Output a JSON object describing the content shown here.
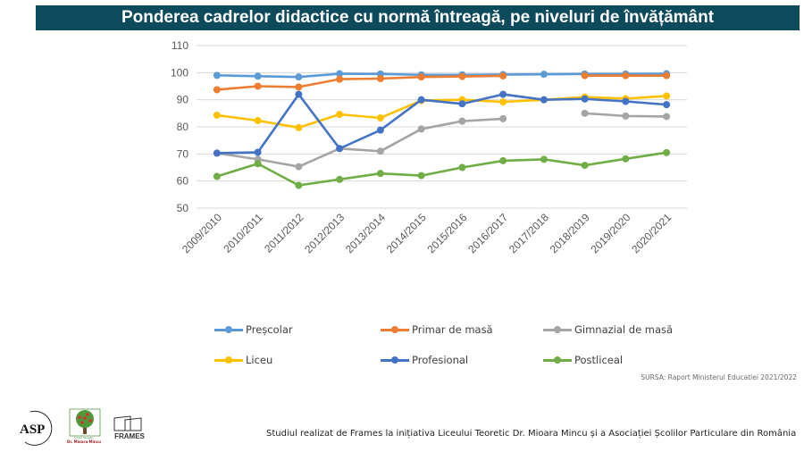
{
  "header": {
    "title": "Ponderea cadrelor didactice cu normă întreagă, pe niveluri de învățământ"
  },
  "chart_data": {
    "type": "line",
    "title": "Ponderea cadrelor didactice cu normă întreagă, pe niveluri de învățământ",
    "xlabel": "",
    "ylabel": "",
    "ylim": [
      50,
      110
    ],
    "yticks": [
      "50",
      "60",
      "70",
      "80",
      "90",
      "100",
      "110"
    ],
    "grid": true,
    "legend_position": "bottom",
    "categories": [
      "2009/2010",
      "2010/2011",
      "2011/2012",
      "2012/2013",
      "2013/2014",
      "2014/2015",
      "2015/2016",
      "2016/2017",
      "2017/2018",
      "2018/2019",
      "2019/2020",
      "2020/2021"
    ],
    "series": [
      {
        "name": "Preșcolar",
        "color": "#5b9bd5",
        "values": [
          99.0,
          98.7,
          98.4,
          99.6,
          99.5,
          99.2,
          99.2,
          99.3,
          99.4,
          99.5,
          99.5,
          99.6
        ]
      },
      {
        "name": "Primar de masă",
        "color": "#ed7d31",
        "values": [
          93.7,
          95.0,
          94.7,
          97.6,
          97.8,
          98.4,
          98.6,
          98.8,
          null,
          98.9,
          98.9,
          98.9
        ]
      },
      {
        "name": "Gimnazial de masă",
        "color": "#a5a5a5",
        "values": [
          70.3,
          68.0,
          65.3,
          72.0,
          71.0,
          79.2,
          82.1,
          83.0,
          null,
          85.0,
          84.0,
          83.8
        ]
      },
      {
        "name": "Liceu",
        "color": "#ffc000",
        "values": [
          84.3,
          82.3,
          79.7,
          84.6,
          83.3,
          89.7,
          90.0,
          89.2,
          90.0,
          91.0,
          90.4,
          91.4
        ]
      },
      {
        "name": "Profesional",
        "color": "#4472c4",
        "values": [
          70.3,
          70.6,
          92.0,
          72.0,
          78.8,
          90.0,
          88.5,
          92.0,
          90.0,
          90.3,
          89.4,
          88.2
        ]
      },
      {
        "name": "Postliceal",
        "color": "#70ad47",
        "values": [
          61.7,
          66.4,
          58.4,
          60.6,
          62.8,
          62.0,
          65.0,
          67.5,
          68.0,
          65.8,
          68.2,
          70.5
        ]
      }
    ]
  },
  "source": "SURSA: Raport Ministerul Educatiei 2021/2022",
  "footer": {
    "text": "Studiul realizat de  Frames la inițiativa Liceului Teoretic Dr. Mioara Mincu și a Asociației Școlilor Particulare din România",
    "logos": {
      "asp": "ASP",
      "tree_top": "Liceul Teoretic",
      "tree_bottom": "Dr. Mioara Mincu",
      "frames": "FRAMES"
    }
  },
  "colors": {
    "title_bar": "#0d4a5c",
    "grid": "#d9d9d9",
    "tick_text": "#595959"
  }
}
